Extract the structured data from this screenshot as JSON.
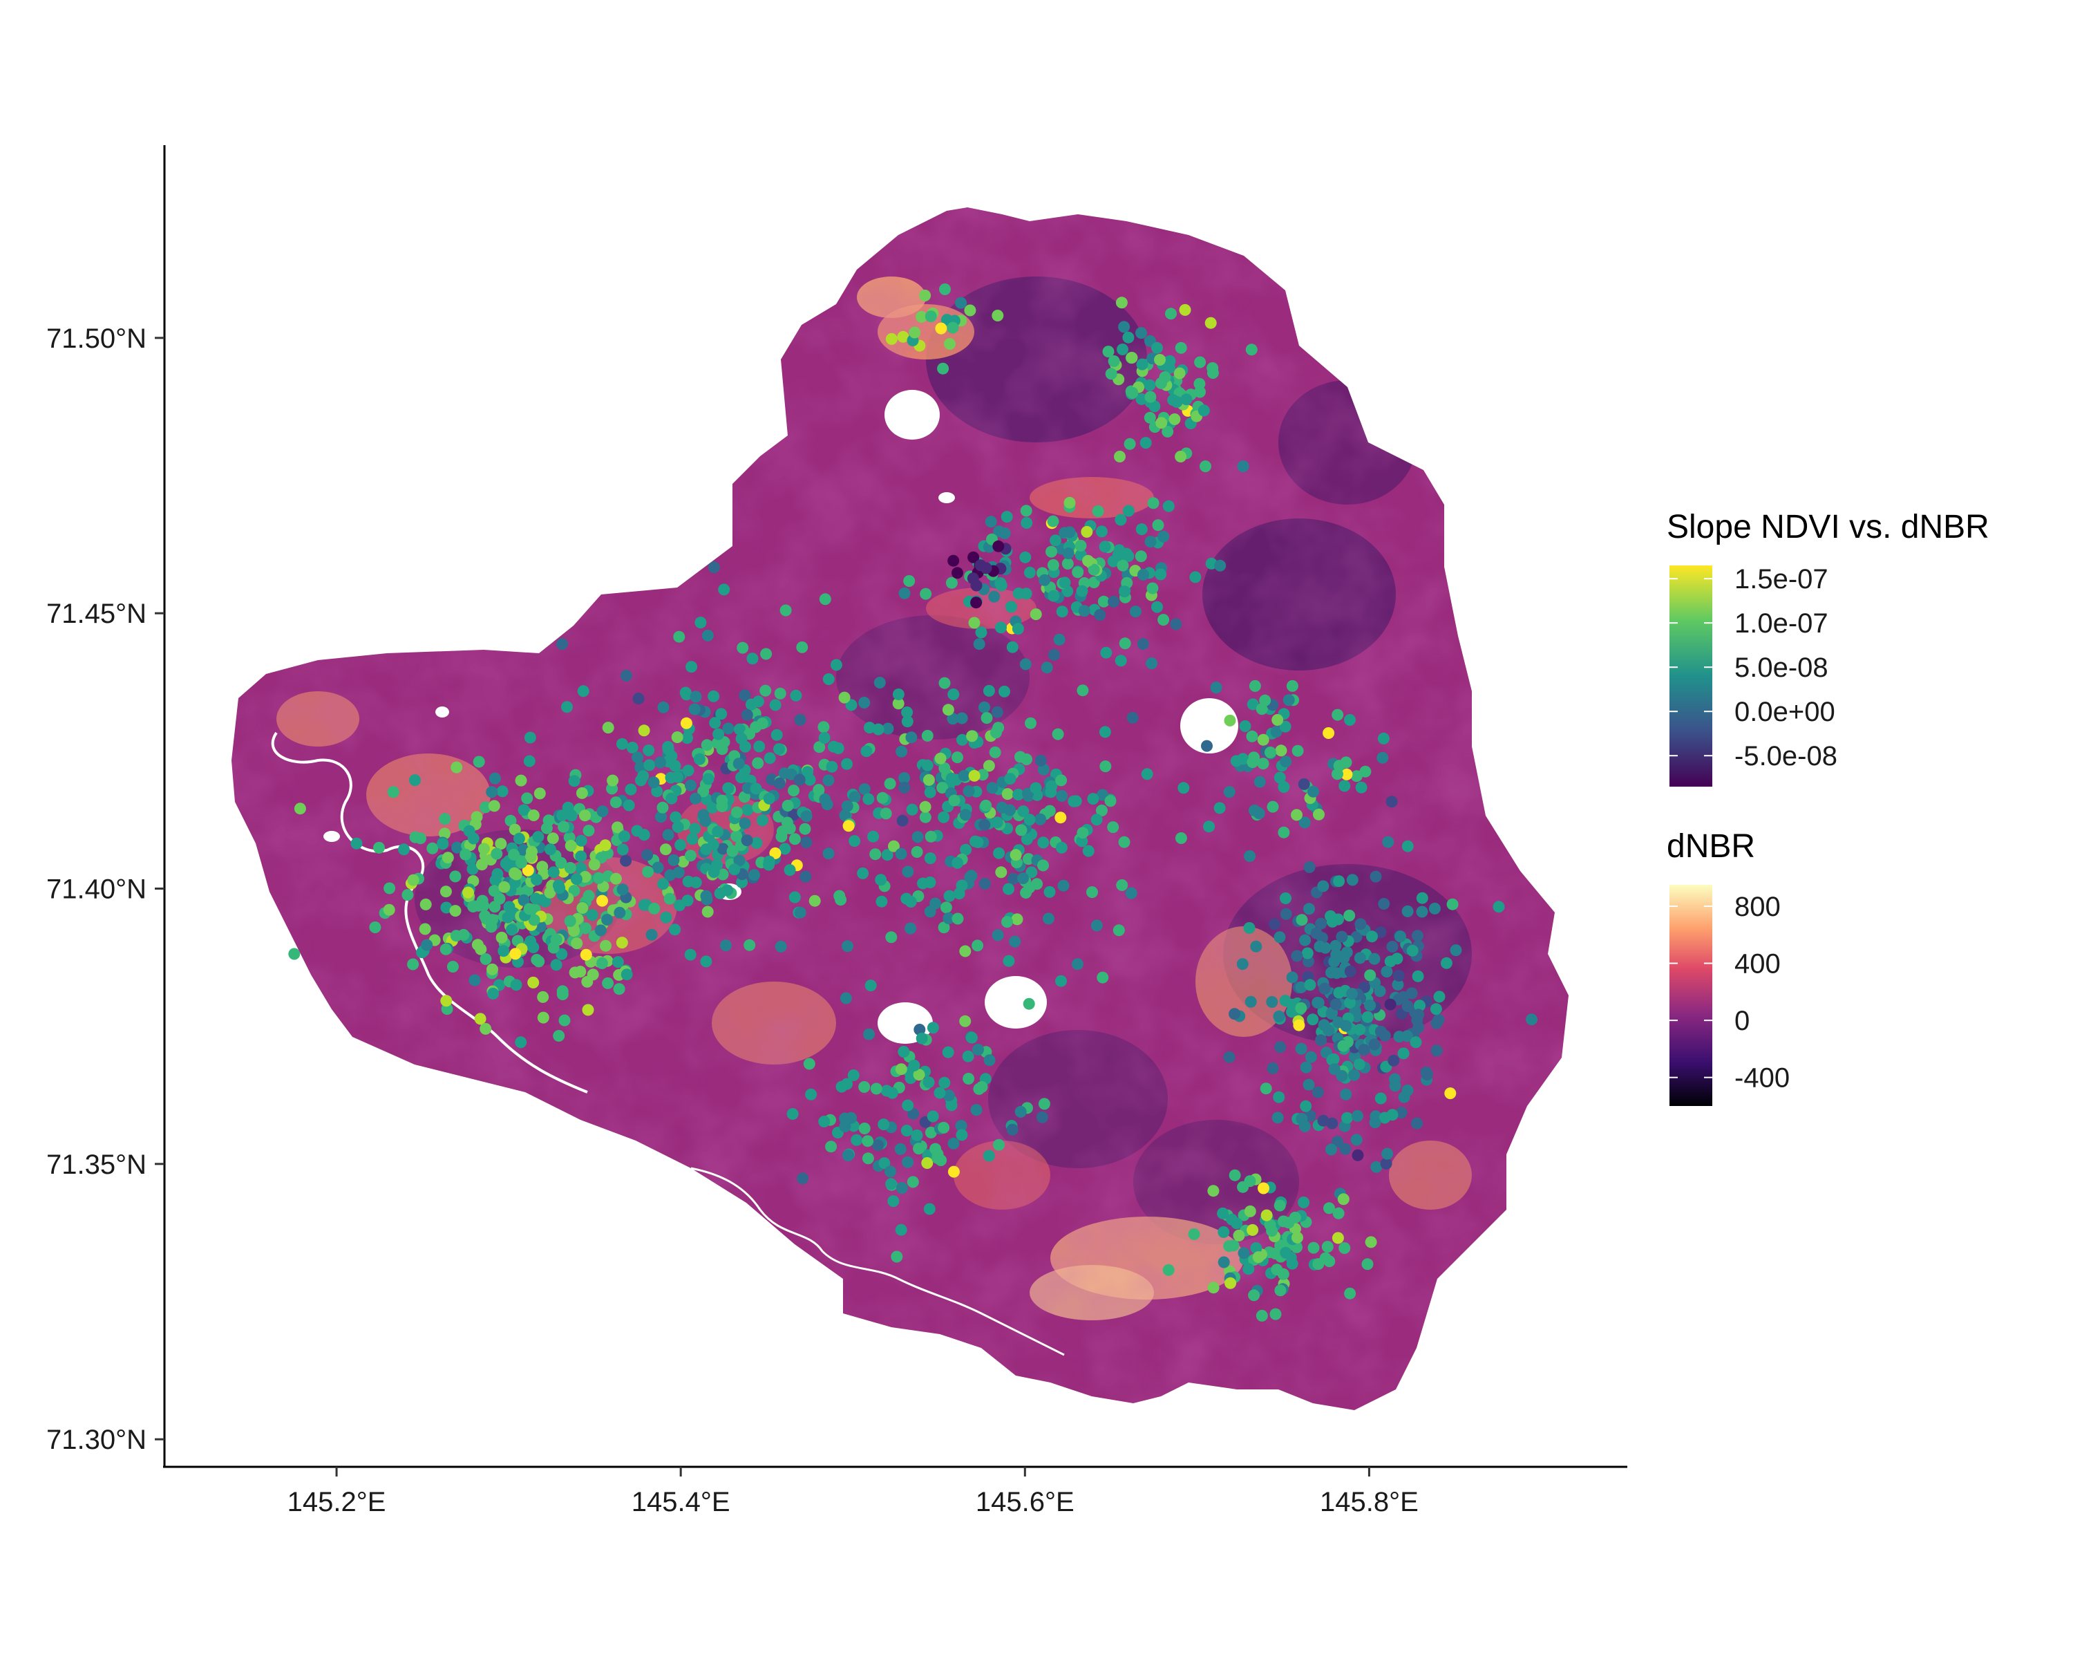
{
  "chart_data": {
    "type": "map",
    "xaxis": {
      "ticks": [
        {
          "value": 145.2,
          "label": "145.2°E"
        },
        {
          "value": 145.4,
          "label": "145.4°E"
        },
        {
          "value": 145.6,
          "label": "145.6°E"
        },
        {
          "value": 145.8,
          "label": "145.8°E"
        }
      ],
      "range": [
        145.1,
        145.95
      ]
    },
    "yaxis": {
      "ticks": [
        {
          "value": 71.3,
          "label": "71.30°N"
        },
        {
          "value": 71.35,
          "label": "71.35°N"
        },
        {
          "value": 71.4,
          "label": "71.40°N"
        },
        {
          "value": 71.45,
          "label": "71.45°N"
        },
        {
          "value": 71.5,
          "label": "71.50°N"
        }
      ],
      "range": [
        71.295,
        71.535
      ]
    },
    "layers": {
      "raster": {
        "variable": "dNBR",
        "description": "burn severity raster over fire perimeter"
      },
      "points": {
        "variable": "Slope NDVI vs. dNBR",
        "count_approx": 1500
      }
    },
    "legends": [
      {
        "title": "Slope NDVI vs. dNBR",
        "colormap": "viridis",
        "range": [
          -8.5e-08,
          1.65e-07
        ],
        "ticks": [
          {
            "value": 1.5e-07,
            "label": "1.5e-07"
          },
          {
            "value": 1e-07,
            "label": "1.0e-07"
          },
          {
            "value": 5e-08,
            "label": "5.0e-08"
          },
          {
            "value": 0.0,
            "label": "0.0e+00"
          },
          {
            "value": -5e-08,
            "label": "-5.0e-08"
          }
        ]
      },
      {
        "title": "dNBR",
        "colormap": "magma",
        "range": [
          -600,
          950
        ],
        "ticks": [
          {
            "value": 800,
            "label": "800"
          },
          {
            "value": 400,
            "label": "400"
          },
          {
            "value": 0,
            "label": "0"
          },
          {
            "value": -400,
            "label": "-400"
          }
        ]
      }
    ]
  }
}
